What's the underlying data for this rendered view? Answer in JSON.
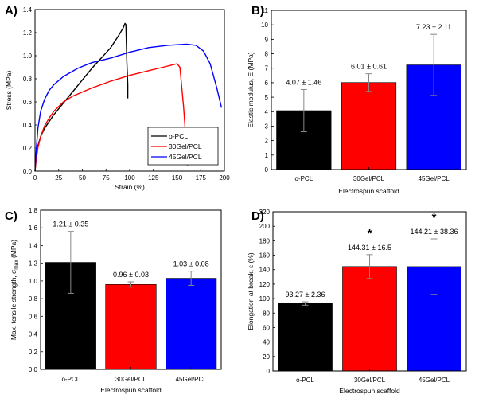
{
  "chart_data": [
    {
      "panel": "A)",
      "type": "line",
      "xlabel": "Strain (%)",
      "ylabel": "Stress (MPa)",
      "xlim": [
        0,
        200
      ],
      "ylim": [
        0,
        1.4
      ],
      "xticks": [
        0,
        25,
        50,
        75,
        100,
        125,
        150,
        175,
        200
      ],
      "yticks": [
        0.0,
        0.2,
        0.4,
        0.6,
        0.8,
        1.0,
        1.2,
        1.4
      ],
      "ytick_labels": [
        "0.0",
        "0.2",
        "0.4",
        "0.6",
        "0.8",
        "1.0",
        "1.2",
        "1.4"
      ],
      "legend_position": "bottom-right",
      "series": [
        {
          "name": "o-PCL",
          "color": "#000000",
          "points": [
            [
              0,
              0
            ],
            [
              1,
              0.1
            ],
            [
              3,
              0.22
            ],
            [
              6,
              0.3
            ],
            [
              10,
              0.37
            ],
            [
              15,
              0.43
            ],
            [
              20,
              0.49
            ],
            [
              30,
              0.59
            ],
            [
              40,
              0.69
            ],
            [
              50,
              0.79
            ],
            [
              60,
              0.89
            ],
            [
              70,
              0.98
            ],
            [
              80,
              1.07
            ],
            [
              88,
              1.17
            ],
            [
              93,
              1.24
            ],
            [
              95,
              1.28
            ],
            [
              96,
              1.27
            ],
            [
              97,
              0.95
            ],
            [
              98,
              0.75
            ],
            [
              98,
              0.63
            ]
          ]
        },
        {
          "name": "30Gel/PCL",
          "color": "#ff0000",
          "points": [
            [
              0,
              0
            ],
            [
              1,
              0.08
            ],
            [
              3,
              0.2
            ],
            [
              6,
              0.3
            ],
            [
              10,
              0.39
            ],
            [
              15,
              0.46
            ],
            [
              20,
              0.52
            ],
            [
              30,
              0.6
            ],
            [
              40,
              0.65
            ],
            [
              60,
              0.72
            ],
            [
              80,
              0.78
            ],
            [
              100,
              0.83
            ],
            [
              120,
              0.87
            ],
            [
              135,
              0.9
            ],
            [
              145,
              0.92
            ],
            [
              150,
              0.93
            ],
            [
              153,
              0.9
            ],
            [
              157,
              0.55
            ],
            [
              160,
              0.2
            ],
            [
              161,
              0.05
            ]
          ]
        },
        {
          "name": "45Gel/PCL",
          "color": "#0000ff",
          "points": [
            [
              0,
              0
            ],
            [
              1,
              0.15
            ],
            [
              3,
              0.37
            ],
            [
              6,
              0.52
            ],
            [
              10,
              0.62
            ],
            [
              15,
              0.7
            ],
            [
              20,
              0.75
            ],
            [
              30,
              0.82
            ],
            [
              45,
              0.89
            ],
            [
              60,
              0.94
            ],
            [
              80,
              0.98
            ],
            [
              100,
              1.03
            ],
            [
              120,
              1.07
            ],
            [
              140,
              1.09
            ],
            [
              160,
              1.1
            ],
            [
              170,
              1.09
            ],
            [
              178,
              1.04
            ],
            [
              185,
              0.93
            ],
            [
              192,
              0.72
            ],
            [
              197,
              0.55
            ]
          ]
        }
      ]
    },
    {
      "panel": "B)",
      "type": "bar",
      "xlabel": "Electrospun scaffold",
      "ylabel": "Elastic modulus, E (MPa)",
      "ylim": [
        0,
        11
      ],
      "yticks": [
        0,
        1,
        2,
        3,
        4,
        5,
        6,
        7,
        8,
        9,
        10,
        11
      ],
      "ytick_labels": [
        "0",
        "1",
        "2",
        "3",
        "4",
        "5",
        "6",
        "7",
        "8",
        "9",
        "10",
        "11"
      ],
      "categories": [
        "o-PCL",
        "30Gel/PCL",
        "45Gel/PCL"
      ],
      "values": [
        4.07,
        6.01,
        7.23
      ],
      "errors": [
        1.46,
        0.61,
        2.11
      ],
      "labels": [
        "4.07 ± 1.46",
        "6.01 ± 0.61",
        "7.23 ± 2.11"
      ],
      "colors": [
        "#000000",
        "#ff0000",
        "#0000ff"
      ],
      "significance": [
        "",
        "",
        ""
      ]
    },
    {
      "panel": "C)",
      "type": "bar",
      "xlabel": "Electrospun scaffold",
      "ylabel": "Max. tensile strength, σ",
      "ylabel_sub": "max",
      "ylabel_unit": " (MPa)",
      "ylim": [
        0,
        1.8
      ],
      "yticks": [
        0.0,
        0.2,
        0.4,
        0.6,
        0.8,
        1.0,
        1.2,
        1.4,
        1.6,
        1.8
      ],
      "ytick_labels": [
        "0.0",
        "0.2",
        "0.4",
        "0.6",
        "0.8",
        "1.0",
        "1.2",
        "1.4",
        "1.6",
        "1.8"
      ],
      "categories": [
        "o-PCL",
        "30Gel/PCL",
        "45Gel/PCL"
      ],
      "values": [
        1.21,
        0.96,
        1.03
      ],
      "errors": [
        0.35,
        0.03,
        0.08
      ],
      "labels": [
        "1.21 ± 0.35",
        "0.96 ± 0.03",
        "1.03 ± 0.08"
      ],
      "colors": [
        "#000000",
        "#ff0000",
        "#0000ff"
      ],
      "significance": [
        "",
        "",
        ""
      ]
    },
    {
      "panel": "D)",
      "type": "bar",
      "xlabel": "Electrospun scaffold",
      "ylabel": "Elongation at break, ε (%)",
      "ylim": [
        0,
        220
      ],
      "yticks": [
        0,
        20,
        40,
        60,
        80,
        100,
        120,
        140,
        160,
        180,
        200,
        220
      ],
      "ytick_labels": [
        "0",
        "20",
        "40",
        "60",
        "80",
        "100",
        "120",
        "140",
        "160",
        "180",
        "200",
        "220"
      ],
      "categories": [
        "o-PCL",
        "30Gel/PCL",
        "45Gel/PCL"
      ],
      "values": [
        93.27,
        144.31,
        144.21
      ],
      "errors": [
        2.36,
        16.5,
        38.36
      ],
      "labels": [
        "93.27 ± 2.36",
        "144.31 ± 16.5",
        "144.21 ± 38.36"
      ],
      "colors": [
        "#000000",
        "#ff0000",
        "#0000ff"
      ],
      "significance": [
        "",
        "*",
        "*"
      ]
    }
  ]
}
